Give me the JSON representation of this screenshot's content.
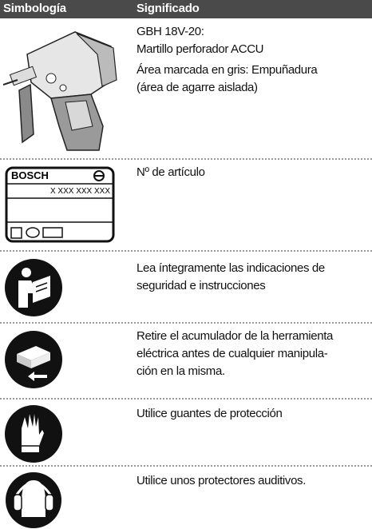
{
  "header": {
    "symbol": "Simbología",
    "meaning": "Significado"
  },
  "rows": [
    {
      "meaning": [
        "GBH 18V-20:",
        "Martillo perforador ACCU",
        "Área marcada en gris: Empuñadura",
        "(área de agarre aislada)"
      ]
    },
    {
      "label": {
        "brand": "BOSCH",
        "number": "X XXX XXX XXX"
      },
      "meaning": [
        "Nº de artículo"
      ]
    },
    {
      "meaning": [
        "Lea íntegramente las indicaciones de",
        "seguridad e instrucciones"
      ]
    },
    {
      "meaning": [
        "Retire el acumulador de la herramienta",
        "eléctrica antes de cualquier manipula-",
        "ción en la misma."
      ]
    },
    {
      "meaning": [
        "Utilice guantes de protección"
      ]
    },
    {
      "meaning": [
        "Utilice unos protectores auditivos."
      ]
    }
  ]
}
